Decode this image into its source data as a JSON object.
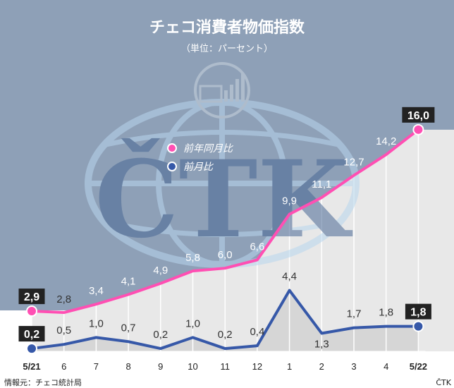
{
  "chart_data": {
    "type": "line",
    "title": "チェコ消費者物価指数",
    "subtitle": "（単位：パーセント）",
    "categories": [
      "5/21",
      "6",
      "7",
      "8",
      "9",
      "10",
      "11",
      "12",
      "1",
      "2",
      "3",
      "4",
      "5/22"
    ],
    "series": [
      {
        "name": "前年同月比",
        "color": "#ff4fb3",
        "values": [
          2.9,
          2.8,
          3.4,
          4.1,
          4.9,
          5.8,
          6.0,
          6.6,
          9.9,
          11.1,
          12.7,
          14.2,
          16.0
        ],
        "labels": [
          "2,9",
          "2,8",
          "3,4",
          "4,1",
          "4,9",
          "5,8",
          "6,0",
          "6,6",
          "9,9",
          "11,1",
          "12,7",
          "14,2",
          "16,0"
        ]
      },
      {
        "name": "前月比",
        "color": "#3658a8",
        "values": [
          0.2,
          0.5,
          1.0,
          0.7,
          0.2,
          1.0,
          0.2,
          0.4,
          4.4,
          1.3,
          1.7,
          1.8,
          1.8
        ],
        "labels": [
          "0,2",
          "0,5",
          "1,0",
          "0,7",
          "0,2",
          "1,0",
          "0,2",
          "0,4",
          "4,4",
          "1,3",
          "1,7",
          "1,8",
          "1,8"
        ]
      }
    ],
    "ylim": [
      0,
      16.5
    ],
    "legend_position": "top-left",
    "grid": true
  },
  "footer": {
    "source": "情報元：チェコ統計局",
    "credit": "ČTK"
  },
  "watermark": {
    "text": "ČTK"
  },
  "colors": {
    "header_bg": "#8ea0b7",
    "area_yoy": "#e8e8e8",
    "area_mom": "#d6d6d6"
  }
}
